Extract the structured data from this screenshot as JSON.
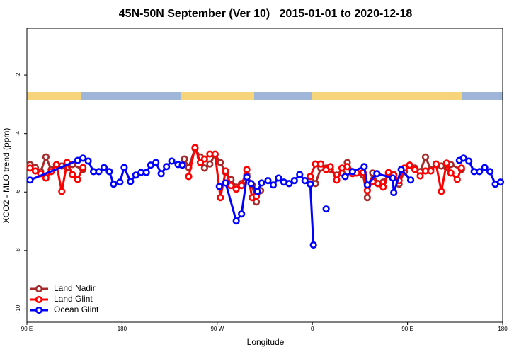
{
  "chart_data": {
    "type": "line",
    "title": "45N-50N September (Ver 10)   2015-01-01 to 2020-12-18",
    "xlabel": "Longitude",
    "ylabel": "XCO2 - MLO trend (ppm)",
    "xlim": [
      90,
      540
    ],
    "ylim": [
      -10.45,
      -0.4
    ],
    "xticks": [
      {
        "value": 90,
        "label": "90 E"
      },
      180,
      {
        "value": 270,
        "label": "90 W"
      },
      {
        "value": 360,
        "label": "0"
      },
      {
        "value": 450,
        "label": "90 E"
      },
      {
        "value": 540,
        "label": "180"
      }
    ],
    "yticks": [
      -10,
      -8,
      -6,
      -4,
      -2
    ],
    "legend": "lower left",
    "series": [
      {
        "name": "Land Nadir",
        "color": "#a52a2a",
        "x": [
          93,
          98,
          103,
          108,
          113,
          118,
          123,
          128,
          133,
          143,
          null,
          239,
          243,
          249,
          254,
          258,
          263,
          268,
          273,
          278,
          283,
          288,
          293,
          298,
          303,
          307,
          311,
          null,
          358,
          363,
          368,
          373,
          377,
          383,
          388,
          393,
          398,
          402,
          408,
          412,
          417,
          422,
          427,
          432,
          437,
          442,
          447,
          452,
          457,
          462,
          467,
          472,
          477,
          482,
          487,
          491,
          501
        ],
        "values": [
          -5.06,
          -5.16,
          -5.3,
          -4.8,
          -5.23,
          -5.06,
          -5.11,
          -5.16,
          -5.06,
          -5.23,
          null,
          -4.87,
          -5.16,
          -4.51,
          -4.8,
          -5.18,
          -5.04,
          -4.72,
          -4.99,
          -5.33,
          -5.57,
          -5.83,
          -5.71,
          -5.42,
          -5.76,
          -6.34,
          -5.95,
          null,
          -5.47,
          -5.71,
          -5.18,
          -5.18,
          -5.23,
          -5.42,
          -5.35,
          -4.99,
          -5.3,
          -5.35,
          -5.42,
          -6.19,
          -5.35,
          -5.71,
          -5.66,
          -5.4,
          -5.4,
          -5.73,
          -5.3,
          -5.08,
          -5.18,
          -5.3,
          -4.8,
          -5.23,
          -5.06,
          -5.11,
          -5.16,
          -5.06,
          -5.23
        ]
      },
      {
        "name": "Land Glint",
        "color": "#ff0000",
        "x": [
          93,
          98,
          103,
          108,
          113,
          118,
          123,
          128,
          133,
          138,
          143,
          null,
          243,
          249,
          254,
          258,
          263,
          268,
          273,
          278,
          283,
          288,
          293,
          298,
          303,
          307,
          null,
          358,
          363,
          368,
          373,
          377,
          383,
          388,
          393,
          398,
          402,
          408,
          412,
          417,
          422,
          427,
          432,
          437,
          442,
          447,
          452,
          457,
          462,
          467,
          472,
          477,
          482,
          487,
          491,
          497,
          501
        ],
        "values": [
          -5.18,
          -5.28,
          -5.37,
          -5.52,
          -5.3,
          -5.06,
          -5.98,
          -4.99,
          -5.4,
          -5.57,
          -5.16,
          null,
          -5.47,
          -4.48,
          -4.99,
          -4.87,
          -4.7,
          -4.7,
          -6.19,
          -5.28,
          -5.78,
          -5.9,
          -5.78,
          -5.23,
          -6.19,
          -6.14,
          null,
          -5.47,
          -5.04,
          -5.04,
          -5.23,
          -5.13,
          -5.59,
          -5.18,
          -5.13,
          -5.37,
          -5.35,
          -5.33,
          -5.95,
          -5.64,
          -5.71,
          -5.83,
          -5.33,
          -5.42,
          -5.61,
          -5.18,
          -5.08,
          -5.23,
          -5.45,
          -5.28,
          -5.28,
          -5.04,
          -5.98,
          -5.01,
          -5.35,
          -5.57,
          -5.18
        ]
      },
      {
        "name": "Ocean Glint",
        "color": "#0000ff",
        "x": [
          93,
          138,
          143,
          148,
          153,
          158,
          163,
          168,
          172,
          178,
          182,
          188,
          193,
          198,
          203,
          207,
          212,
          217,
          222,
          227,
          233,
          237,
          null,
          272,
          278,
          288,
          293,
          298,
          302,
          308,
          312,
          318,
          323,
          328,
          333,
          338,
          343,
          348,
          353,
          358,
          361,
          null,
          373,
          null,
          391,
          398,
          409,
          412,
          421,
          436,
          437,
          444,
          453,
          null,
          499,
          503,
          508,
          513,
          518,
          523,
          528,
          533,
          538
        ],
        "values": [
          -5.59,
          -4.92,
          -4.84,
          -4.94,
          -5.3,
          -5.3,
          -5.16,
          -5.3,
          -5.73,
          -5.66,
          -5.16,
          -5.64,
          -5.42,
          -5.33,
          -5.33,
          -5.08,
          -4.99,
          -5.37,
          -5.13,
          -4.94,
          -5.06,
          -5.08,
          null,
          -5.81,
          -5.69,
          -6.99,
          -6.75,
          -5.49,
          -5.71,
          -5.98,
          -5.69,
          -5.61,
          -5.76,
          -5.52,
          -5.66,
          -5.71,
          -5.61,
          -5.4,
          -5.61,
          -5.73,
          -7.81,
          null,
          -6.58,
          null,
          -5.47,
          -5.3,
          -5.13,
          -5.76,
          -5.37,
          -5.52,
          -6.02,
          -5.23,
          -5.59,
          null,
          -4.92,
          -4.84,
          -4.94,
          -5.3,
          -5.3,
          -5.16,
          -5.3,
          -5.73,
          -5.66
        ]
      }
    ]
  }
}
